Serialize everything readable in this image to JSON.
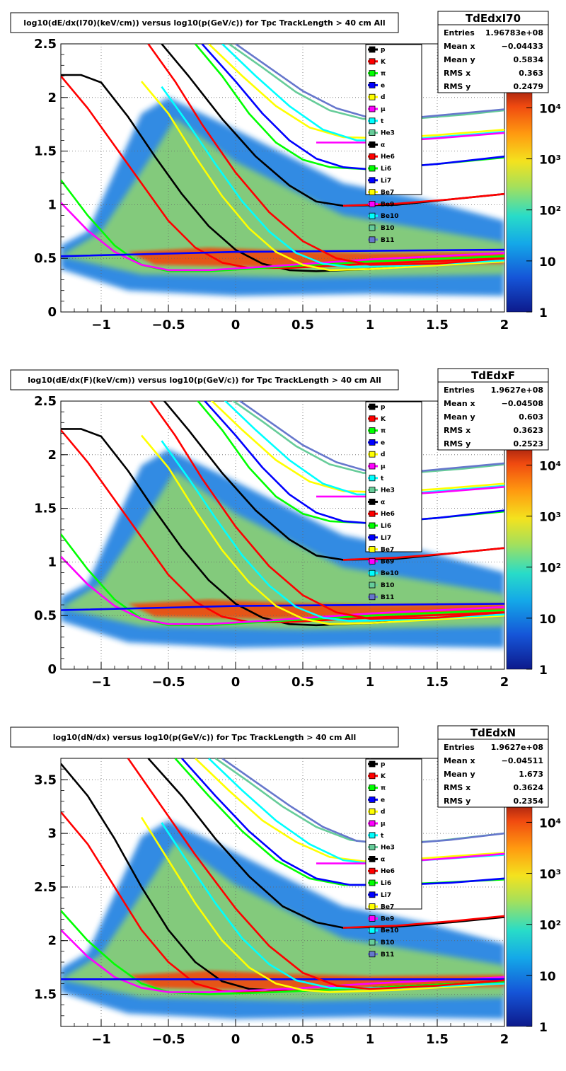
{
  "chart_data": [
    {
      "type": "heatmap",
      "title": "log10(dE/dx(I70)(keV/cm)) versus log10(p(GeV/c)) for Tpc TrackLength > 40 cm All",
      "xlabel": "",
      "ylabel": "",
      "xlim": [
        -1.3,
        2.0
      ],
      "ylim": [
        0,
        2.5
      ],
      "xticks": [
        "−1",
        "−0.5",
        "0",
        "0.5",
        "1",
        "1.5",
        "2"
      ],
      "yticks": [
        "0",
        "0.5",
        "1",
        "1.5",
        "2",
        "2.5"
      ],
      "zscale": "log",
      "zlim": [
        1,
        30000
      ],
      "zticks": [
        "1",
        "10",
        "10²",
        "10³",
        "10⁴"
      ],
      "stats": {
        "name": "TdEdxI70",
        "rows": [
          {
            "label": "Entries",
            "value": "1.96783e+08"
          },
          {
            "label": "Mean x",
            "value": "−0.04433"
          },
          {
            "label": "Mean y",
            "value": "0.5834"
          },
          {
            "label": "RMS x",
            "value": "0.363"
          },
          {
            "label": "RMS y",
            "value": "0.2479"
          }
        ]
      }
    },
    {
      "type": "heatmap",
      "title": "log10(dE/dx(F)(keV/cm)) versus log10(p(GeV/c)) for Tpc TrackLength > 40 cm All",
      "xlabel": "",
      "ylabel": "",
      "xlim": [
        -1.3,
        2.0
      ],
      "ylim": [
        0,
        2.5
      ],
      "xticks": [
        "−1",
        "−0.5",
        "0",
        "0.5",
        "1",
        "1.5",
        "2"
      ],
      "yticks": [
        "0",
        "0.5",
        "1",
        "1.5",
        "2",
        "2.5"
      ],
      "zscale": "log",
      "zlim": [
        1,
        30000
      ],
      "zticks": [
        "1",
        "10",
        "10²",
        "10³",
        "10⁴"
      ],
      "stats": {
        "name": "TdEdxF",
        "rows": [
          {
            "label": "Entries",
            "value": "1.9627e+08"
          },
          {
            "label": "Mean x",
            "value": "−0.04508"
          },
          {
            "label": "Mean y",
            "value": "0.603"
          },
          {
            "label": "RMS x",
            "value": "0.3623"
          },
          {
            "label": "RMS y",
            "value": "0.2523"
          }
        ]
      }
    },
    {
      "type": "heatmap",
      "title": "log10(dN/dx) versus log10(p(GeV/c)) for Tpc TrackLength > 40 cm All",
      "xlabel": "",
      "ylabel": "",
      "xlim": [
        -1.3,
        2.0
      ],
      "ylim": [
        1.2,
        3.7
      ],
      "xticks": [
        "−1",
        "−0.5",
        "0",
        "0.5",
        "1",
        "1.5",
        "2"
      ],
      "yticks": [
        "1.5",
        "2",
        "2.5",
        "3",
        "3.5"
      ],
      "zscale": "log",
      "zlim": [
        1,
        30000
      ],
      "zticks": [
        "1",
        "10",
        "10²",
        "10³",
        "10⁴"
      ],
      "stats": {
        "name": "TdEdxN",
        "rows": [
          {
            "label": "Entries",
            "value": "1.9627e+08"
          },
          {
            "label": "Mean x",
            "value": "−0.04511"
          },
          {
            "label": "Mean y",
            "value": "1.673"
          },
          {
            "label": "RMS x",
            "value": "0.3624"
          },
          {
            "label": "RMS y",
            "value": "0.2354"
          }
        ]
      }
    }
  ],
  "legend": [
    {
      "label": "p",
      "color": "#000000"
    },
    {
      "label": "K",
      "color": "#ff0000"
    },
    {
      "label": "π",
      "color": "#00ff00"
    },
    {
      "label": "e",
      "color": "#0000ff"
    },
    {
      "label": "d",
      "color": "#ffff00"
    },
    {
      "label": "μ",
      "color": "#ff00ff"
    },
    {
      "label": "t",
      "color": "#00ffff"
    },
    {
      "label": "He3",
      "color": "#66cc99"
    },
    {
      "label": "α",
      "color": "#000000"
    },
    {
      "label": "He6",
      "color": "#ff0000"
    },
    {
      "label": "Li6",
      "color": "#00ff00"
    },
    {
      "label": "Li7",
      "color": "#0000ff"
    },
    {
      "label": "Be7",
      "color": "#ffff00"
    },
    {
      "label": "Be9",
      "color": "#ff00ff"
    },
    {
      "label": "Be10",
      "color": "#00ffff"
    },
    {
      "label": "B10",
      "color": "#66cc99"
    },
    {
      "label": "B11",
      "color": "#6677cc"
    }
  ]
}
